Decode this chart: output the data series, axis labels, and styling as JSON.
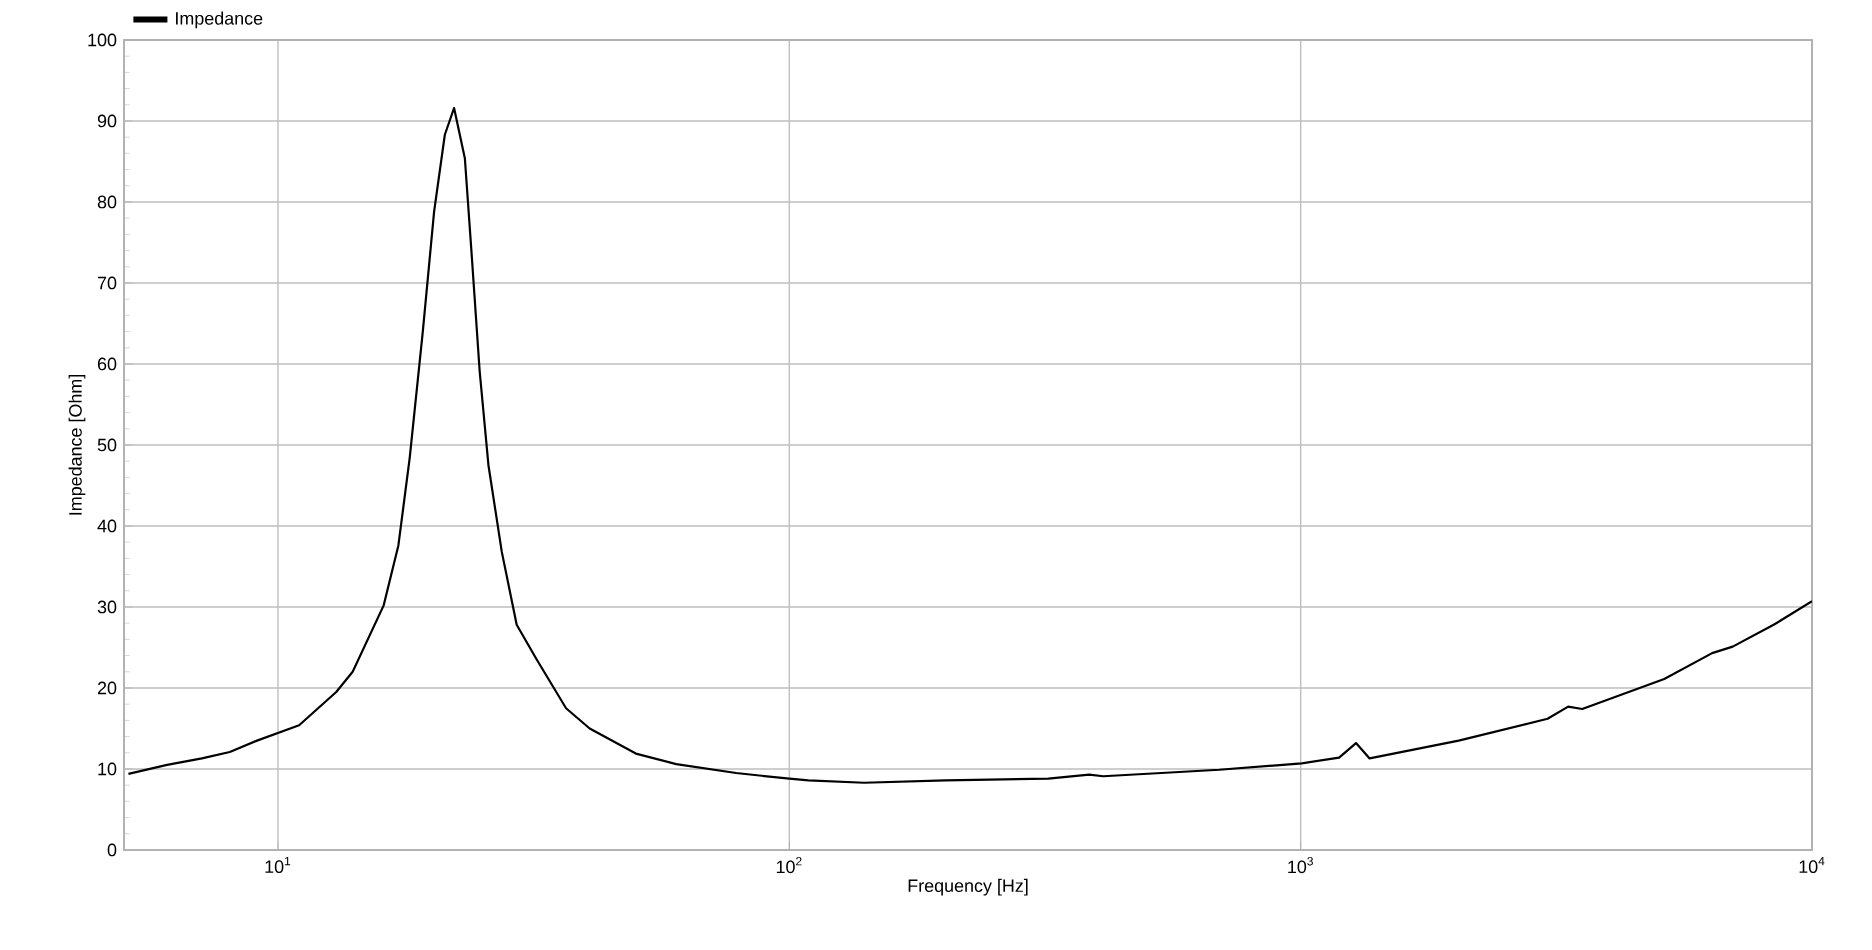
{
  "chart_data": {
    "type": "line",
    "xlabel": "Frequency  [Hz]",
    "ylabel": "Impedance  [Ohm]",
    "series": [
      {
        "name": "Impedance",
        "color": "#000000",
        "x": [
          5.1,
          6.07,
          7.1,
          8.05,
          9.1,
          11.0,
          13.0,
          14.0,
          16.1,
          17.2,
          18.1,
          19.2,
          20.2,
          21.2,
          22.1,
          23.2,
          23.9,
          24.8,
          25.8,
          27.4,
          29.3,
          32.0,
          36.6,
          40.7,
          50.1,
          60.1,
          78.7,
          100,
          109,
          140,
          202,
          321,
          386,
          411,
          693,
          1005,
          1189,
          1283,
          1364,
          2037,
          3040,
          3335,
          3553,
          5140,
          6378,
          6997,
          8414,
          10000
        ],
        "values": [
          9.4,
          10.5,
          11.3,
          12.1,
          13.5,
          15.4,
          19.5,
          22,
          30.2,
          37.6,
          48.4,
          64,
          78.8,
          88.3,
          91.6,
          85.4,
          73.9,
          59.1,
          47.5,
          36.8,
          27.8,
          23.6,
          17.5,
          15,
          11.9,
          10.6,
          9.5,
          8.8,
          8.6,
          8.3,
          8.6,
          8.8,
          9.3,
          9.1,
          9.9,
          10.7,
          11.4,
          13.2,
          11.3,
          13.5,
          16.2,
          17.7,
          17.4,
          21.1,
          24.3,
          25.1,
          27.8,
          30.7
        ]
      }
    ],
    "xlim": [
      5,
      10000
    ],
    "ylim": [
      0,
      100
    ],
    "xticks": [
      {
        "value": 10,
        "label": "10$^{1}$"
      },
      {
        "value": 100,
        "label": "10$^{2}$"
      },
      {
        "value": 1000,
        "label": "10$^{3}$"
      },
      {
        "value": 10000,
        "label": "10$^{4}$"
      }
    ],
    "yticks": [
      0,
      10,
      20,
      30,
      40,
      50,
      60,
      70,
      80,
      90,
      100
    ],
    "log": "x",
    "grid": true,
    "legend": "top left",
    "marker": "none",
    "line_style": "solid"
  }
}
